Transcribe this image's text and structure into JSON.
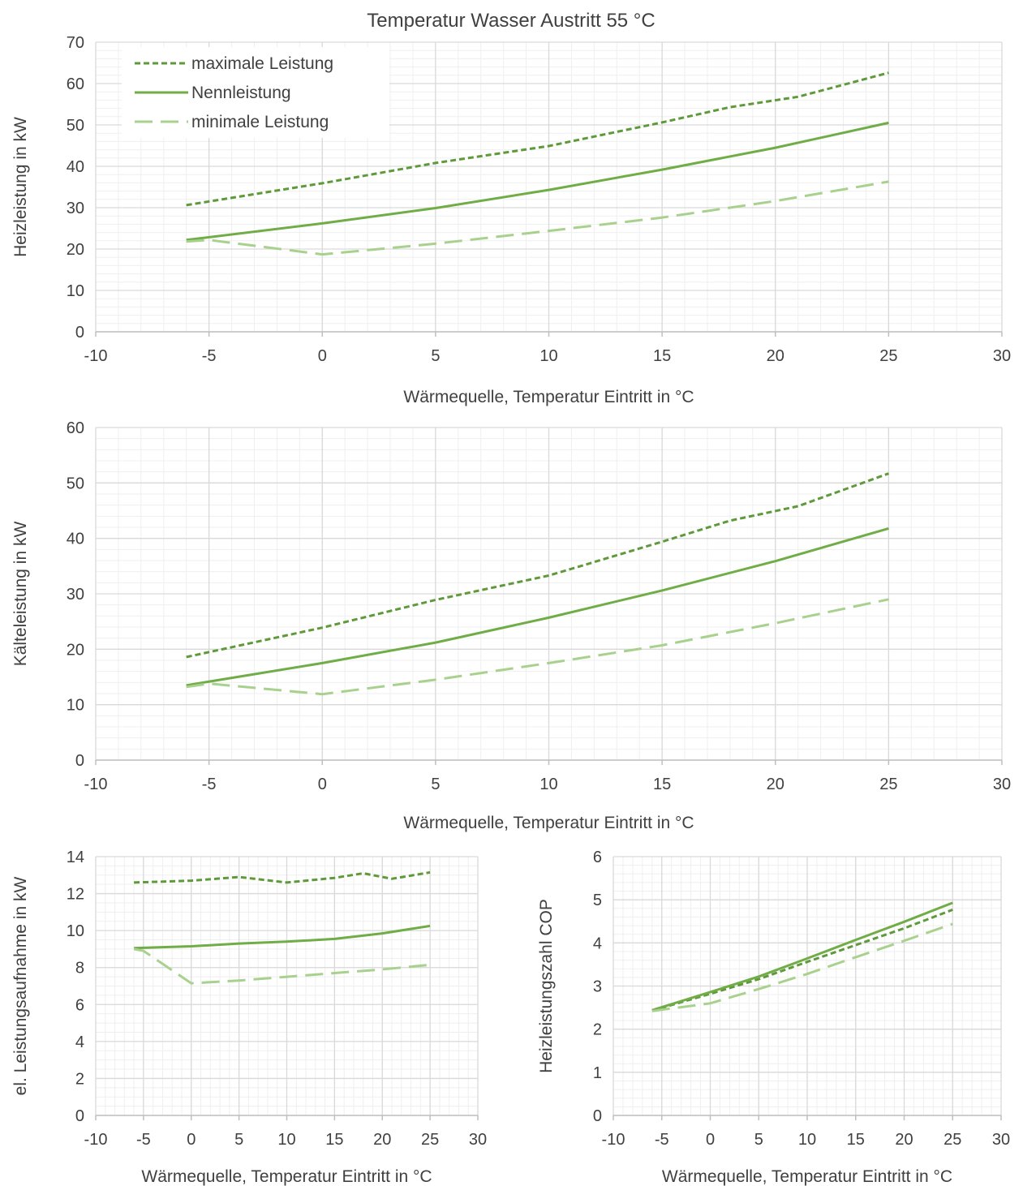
{
  "title": "Temperatur Wasser Austritt 55 °C",
  "colors": {
    "max": "#5f9a3a",
    "nenn": "#70ad47",
    "min": "#a9d18e",
    "grid_major": "#d9d9d9",
    "grid_minor": "#efefef",
    "axis": "#bfbfbf",
    "text": "#404040"
  },
  "legend": {
    "placement": "top-left",
    "items": [
      "maximale Leistung",
      "Nennleistung",
      "minimale Leistung"
    ]
  },
  "chart_data": [
    {
      "type": "line",
      "xlabel": "Wärmequelle, Temperatur Eintritt in °C",
      "ylabel": "Heizleistung in kW",
      "xlim": [
        -10,
        30
      ],
      "ylim": [
        0,
        70
      ],
      "xticks": [
        -10,
        -5,
        0,
        5,
        10,
        15,
        20,
        25,
        30
      ],
      "yticks": [
        0,
        10,
        20,
        30,
        40,
        50,
        60,
        70
      ],
      "grid": true,
      "series": [
        {
          "name": "maximale Leistung",
          "style": "dotted",
          "x": [
            -6,
            0,
            5,
            10,
            15,
            18,
            21,
            25
          ],
          "y": [
            30.6,
            35.9,
            40.8,
            44.9,
            50.6,
            54.3,
            56.8,
            62.6
          ]
        },
        {
          "name": "Nennleistung",
          "style": "solid",
          "x": [
            -6,
            0,
            5,
            10,
            15,
            20,
            25
          ],
          "y": [
            22.2,
            26.2,
            29.9,
            34.3,
            39.2,
            44.5,
            50.5
          ]
        },
        {
          "name": "minimale Leistung",
          "style": "dashed",
          "x": [
            -6,
            -5,
            0,
            5,
            10,
            15,
            20,
            25
          ],
          "y": [
            21.8,
            22.2,
            18.7,
            21.3,
            24.4,
            27.6,
            31.6,
            36.3
          ]
        }
      ]
    },
    {
      "type": "line",
      "xlabel": "Wärmequelle, Temperatur Eintritt in °C",
      "ylabel": "Kälteleistung in kW",
      "xlim": [
        -10,
        30
      ],
      "ylim": [
        0,
        60
      ],
      "xticks": [
        -10,
        -5,
        0,
        5,
        10,
        15,
        20,
        25,
        30
      ],
      "yticks": [
        0,
        10,
        20,
        30,
        40,
        50,
        60
      ],
      "grid": true,
      "series": [
        {
          "name": "maximale Leistung",
          "style": "dotted",
          "x": [
            -6,
            0,
            5,
            10,
            15,
            18,
            21,
            25
          ],
          "y": [
            18.6,
            23.9,
            28.9,
            33.3,
            39.4,
            43.2,
            45.8,
            51.7
          ]
        },
        {
          "name": "Nennleistung",
          "style": "solid",
          "x": [
            -6,
            0,
            5,
            10,
            15,
            20,
            25
          ],
          "y": [
            13.5,
            17.5,
            21.2,
            25.7,
            30.6,
            35.9,
            41.8
          ]
        },
        {
          "name": "minimale Leistung",
          "style": "dashed",
          "x": [
            -6,
            -5,
            0,
            5,
            10,
            15,
            20,
            25
          ],
          "y": [
            13.2,
            13.8,
            11.9,
            14.5,
            17.5,
            20.7,
            24.7,
            29.0
          ]
        }
      ]
    },
    {
      "type": "line",
      "xlabel": "Wärmequelle, Temperatur Eintritt in °C",
      "ylabel": "el. Leistungsaufnahme in kW",
      "xlim": [
        -10,
        30
      ],
      "ylim": [
        0,
        14
      ],
      "xticks": [
        -10,
        -5,
        0,
        5,
        10,
        15,
        20,
        25,
        30
      ],
      "yticks": [
        0,
        2,
        4,
        6,
        8,
        10,
        12,
        14
      ],
      "grid": true,
      "series": [
        {
          "name": "maximale Leistung",
          "style": "dotted",
          "x": [
            -6,
            0,
            5,
            10,
            15,
            18,
            21,
            25
          ],
          "y": [
            12.6,
            12.7,
            12.9,
            12.6,
            12.85,
            13.1,
            12.8,
            13.15
          ]
        },
        {
          "name": "Nennleistung",
          "style": "solid",
          "x": [
            -6,
            0,
            5,
            10,
            15,
            20,
            25
          ],
          "y": [
            9.05,
            9.15,
            9.3,
            9.4,
            9.55,
            9.85,
            10.25
          ]
        },
        {
          "name": "minimale Leistung",
          "style": "dashed",
          "x": [
            -6,
            -5,
            0,
            5,
            10,
            15,
            20,
            25
          ],
          "y": [
            9.0,
            8.9,
            7.15,
            7.3,
            7.5,
            7.7,
            7.9,
            8.15
          ]
        }
      ]
    },
    {
      "type": "line",
      "xlabel": "Wärmequelle, Temperatur Eintritt in °C",
      "ylabel": "Heizleistungszahl COP",
      "xlim": [
        -10,
        30
      ],
      "ylim": [
        0,
        6
      ],
      "xticks": [
        -10,
        -5,
        0,
        5,
        10,
        15,
        20,
        25,
        30
      ],
      "yticks": [
        0,
        1,
        2,
        3,
        4,
        5,
        6
      ],
      "grid": true,
      "series": [
        {
          "name": "maximale Leistung",
          "style": "dotted",
          "x": [
            -6,
            0,
            5,
            10,
            15,
            20,
            25
          ],
          "y": [
            2.43,
            2.82,
            3.16,
            3.56,
            3.95,
            4.34,
            4.77
          ]
        },
        {
          "name": "Nennleistung",
          "style": "solid",
          "x": [
            -6,
            0,
            5,
            10,
            15,
            20,
            25
          ],
          "y": [
            2.44,
            2.86,
            3.22,
            3.64,
            4.07,
            4.49,
            4.93
          ]
        },
        {
          "name": "minimale Leistung",
          "style": "dashed",
          "x": [
            -6,
            0,
            5,
            10,
            15,
            20,
            25
          ],
          "y": [
            2.42,
            2.6,
            2.93,
            3.28,
            3.67,
            4.05,
            4.44
          ]
        }
      ]
    }
  ]
}
